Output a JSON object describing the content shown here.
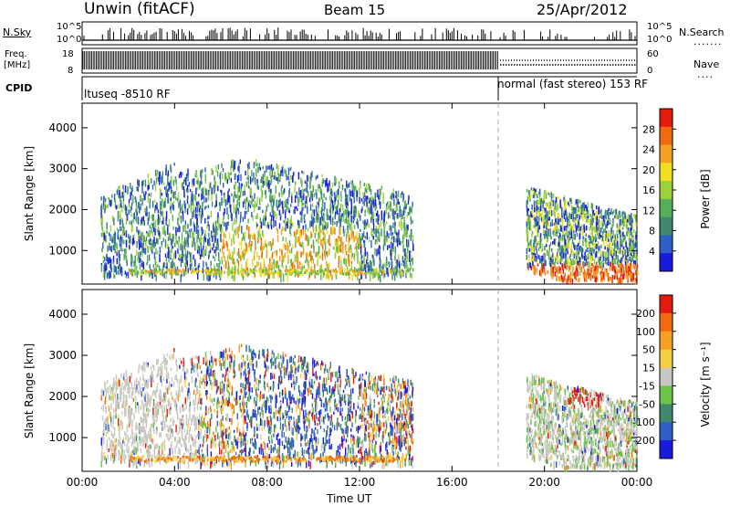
{
  "header": {
    "title": "Unwin (fitACF)",
    "beam": "Beam 15",
    "date": "25/Apr/2012"
  },
  "status_rows": {
    "nsky_label": "N.Sky",
    "nsky_top": "10^5",
    "nsky_bot": "10^0",
    "nsearch_label": "N.Search",
    "nsearch_top": "10^5",
    "nsearch_bot": "10^0",
    "freq_label": "Freq.",
    "freq_unit": "[MHz]",
    "freq_top": "18",
    "freq_bot": "8",
    "nave_label": "Nave",
    "nave_top": "60",
    "nave_bot": "0",
    "cpid_label": "CPID",
    "cpid_left": "ltuseq -8510 RF",
    "cpid_right": "normal (fast stereo) 153 RF"
  },
  "colors": {
    "power": [
      "#1a1adf",
      "#2e5fc8",
      "#3f8a6e",
      "#56b05a",
      "#9bd23c",
      "#f0e020",
      "#f5a020",
      "#f06a10",
      "#e21a10"
    ],
    "velocity": [
      "#1a1adf",
      "#2e5fc8",
      "#3f8a6e",
      "#6cc44a",
      "#c8c8c0",
      "#f5d040",
      "#f5a020",
      "#f06a10",
      "#e21a10"
    ]
  },
  "chart_data": [
    {
      "type": "heatmap",
      "name": "power",
      "xlabel": "",
      "ylabel": "Slant Range [km]",
      "x_range": [
        "00:00",
        "24:00"
      ],
      "ylim": [
        180,
        4600
      ],
      "yticks": [
        "1000",
        "2000",
        "3000",
        "4000"
      ],
      "colorbar_label": "Power [dB]",
      "colorbar_ticks": [
        "4",
        "8",
        "12",
        "16",
        "20",
        "24",
        "28"
      ],
      "description_bands": [
        {
          "t0": 1.0,
          "t1": 14.2,
          "r0": 500,
          "r1": 3300,
          "level": "mixed"
        },
        {
          "t0": 19.2,
          "t1": 24.0,
          "r0": 300,
          "r1": 2600,
          "level": "mixed"
        }
      ]
    },
    {
      "type": "heatmap",
      "name": "velocity",
      "xlabel": "Time UT",
      "ylabel": "Slant Range [km]",
      "x_range": [
        "00:00",
        "24:00"
      ],
      "xticks": [
        "00:00",
        "04:00",
        "08:00",
        "12:00",
        "16:00",
        "20:00",
        "00:00"
      ],
      "ylim": [
        180,
        4600
      ],
      "yticks": [
        "1000",
        "2000",
        "3000",
        "4000"
      ],
      "colorbar_label": "Velocity [m s⁻¹]",
      "colorbar_ticks": [
        "200",
        "100",
        "50",
        "15",
        "-15",
        "-50",
        "-100",
        "-200"
      ]
    }
  ]
}
